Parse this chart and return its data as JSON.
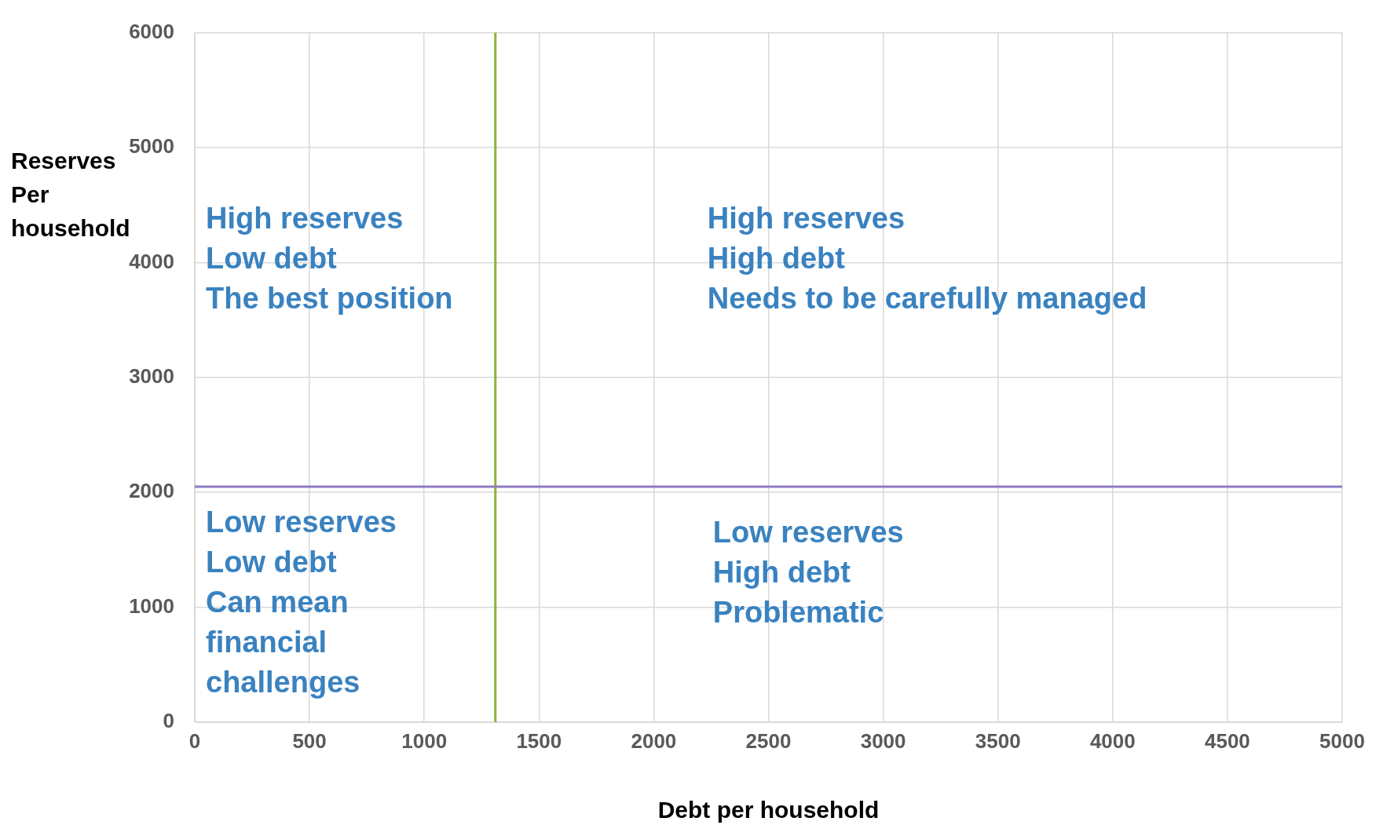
{
  "chart_data": {
    "type": "scatter",
    "xlabel": "Debt per household",
    "ylabel": "Reserves\nPer\nhousehold",
    "xlim": [
      0,
      5000
    ],
    "xticks": [
      0,
      500,
      1000,
      1500,
      2000,
      2500,
      3000,
      3500,
      4000,
      4500,
      5000
    ],
    "ylim": [
      0,
      6000
    ],
    "yticks": [
      0,
      1000,
      2000,
      3000,
      4000,
      5000,
      6000
    ],
    "grid": true,
    "ref_lines": [
      {
        "axis": "x",
        "value": 1310,
        "color": "#8db33a"
      },
      {
        "axis": "y",
        "value": 2050,
        "color": "#8e7cc3"
      }
    ],
    "annotations": [
      "High reserves\nLow debt\nThe best position",
      "High reserves\nHigh debt\nNeeds to be carefully managed",
      "Low reserves\nLow debt\nCan mean\nfinancial\nchallenges",
      "Low reserves\nHigh debt\nProblematic"
    ]
  }
}
